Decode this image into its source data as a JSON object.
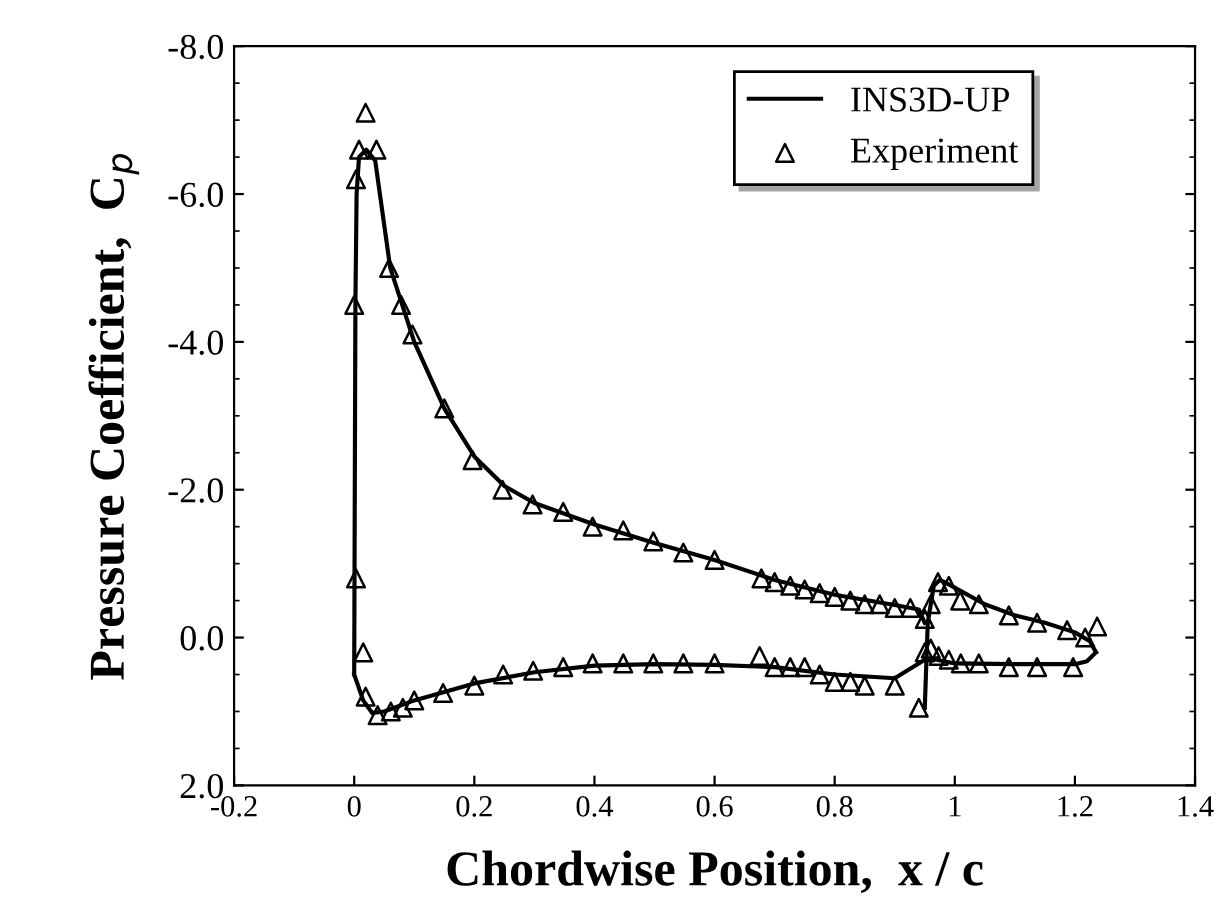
{
  "chart_data": {
    "type": "line",
    "xlabel": "Chordwise Position,  x / c",
    "ylabel": "Pressure Coefficient,  C$_{p}$",
    "xlim": [
      -0.2,
      1.4
    ],
    "xticks": [
      -0.2,
      0,
      0.2,
      0.4,
      0.6,
      0.8,
      1,
      1.2,
      1.4
    ],
    "ylim": [
      2.0,
      -8.0
    ],
    "yticks": [
      {
        "value": 2,
        "label": "2.0"
      },
      {
        "value": 0,
        "label": "0.0"
      },
      {
        "value": -2,
        "label": "-2.0"
      },
      {
        "value": -4,
        "label": "-4.0"
      },
      {
        "value": -6,
        "label": "-6.0"
      },
      {
        "value": -8,
        "label": "-8.0"
      }
    ],
    "legend": "top right",
    "grid": false,
    "series": [
      {
        "name": "INS3D-UP",
        "color": "#000000",
        "line_style": "solid",
        "marker": "none",
        "x": [
          0.0,
          0.001,
          0.002,
          0.004,
          0.008,
          0.02,
          0.035,
          0.06,
          0.08,
          0.1,
          0.15,
          0.2,
          0.25,
          0.3,
          0.4,
          0.5,
          0.6,
          0.7,
          0.8,
          0.9,
          0.94,
          0.95,
          null,
          0.0,
          0.015,
          0.03,
          0.05,
          0.1,
          0.2,
          0.3,
          0.4,
          0.5,
          0.6,
          0.7,
          0.8,
          0.9,
          0.95,
          null,
          0.95,
          0.955,
          0.965,
          0.975,
          0.99,
          1.05,
          1.1,
          1.15,
          1.2,
          1.225,
          1.235,
          null,
          0.955,
          0.97,
          1.0,
          1.1,
          1.2,
          1.22,
          1.235
        ],
        "values": [
          0.5,
          -2.0,
          -4.5,
          -6.0,
          -6.5,
          -6.6,
          -6.45,
          -5.0,
          -4.5,
          -4.0,
          -3.1,
          -2.45,
          -2.05,
          -1.82,
          -1.53,
          -1.28,
          -1.05,
          -0.78,
          -0.58,
          -0.44,
          -0.38,
          -0.2,
          null,
          0.5,
          0.85,
          1.02,
          1.0,
          0.85,
          0.62,
          0.47,
          0.38,
          0.36,
          0.37,
          0.4,
          0.5,
          0.55,
          0.3,
          null,
          0.95,
          -0.2,
          -0.7,
          -0.78,
          -0.72,
          -0.45,
          -0.3,
          -0.2,
          -0.07,
          0.05,
          0.2,
          null,
          0.3,
          0.3,
          0.35,
          0.36,
          0.36,
          0.32,
          0.2
        ]
      },
      {
        "name": "Experiment",
        "type": "scatter",
        "color": "#000000",
        "marker": "triangle",
        "x": [
          0.019,
          0.008,
          0.037,
          0.003,
          0.0,
          0.058,
          0.078,
          0.097,
          0.15,
          0.197,
          0.247,
          0.297,
          0.348,
          0.397,
          0.448,
          0.498,
          0.548,
          0.6,
          0.678,
          0.7,
          0.726,
          0.75,
          0.775,
          0.8,
          0.826,
          0.85,
          0.875,
          0.9,
          0.926,
          0.95,
          0.96,
          0.972,
          0.99,
          1.009,
          1.04,
          1.09,
          1.137,
          1.187,
          1.217,
          1.237,
          0.003,
          0.015,
          0.019,
          0.039,
          0.061,
          0.081,
          0.1,
          0.148,
          0.2,
          0.248,
          0.298,
          0.348,
          0.397,
          0.448,
          0.498,
          0.548,
          0.6,
          0.675,
          0.7,
          0.726,
          0.75,
          0.775,
          0.8,
          0.826,
          0.85,
          0.9,
          0.94,
          0.95,
          0.96,
          0.973,
          0.99,
          1.01,
          1.04,
          1.09,
          1.137,
          1.197
        ],
        "values": [
          -7.1,
          -6.6,
          -6.6,
          -6.2,
          -4.5,
          -5.0,
          -4.5,
          -4.1,
          -3.1,
          -2.4,
          -2.0,
          -1.8,
          -1.7,
          -1.5,
          -1.45,
          -1.3,
          -1.15,
          -1.05,
          -0.8,
          -0.75,
          -0.7,
          -0.65,
          -0.6,
          -0.55,
          -0.5,
          -0.45,
          -0.45,
          -0.4,
          -0.4,
          -0.25,
          -0.45,
          -0.75,
          -0.7,
          -0.5,
          -0.45,
          -0.3,
          -0.2,
          -0.1,
          0.0,
          -0.15,
          -0.8,
          0.2,
          0.8,
          1.05,
          1.0,
          0.95,
          0.85,
          0.75,
          0.65,
          0.5,
          0.45,
          0.4,
          0.35,
          0.35,
          0.35,
          0.35,
          0.35,
          0.25,
          0.4,
          0.4,
          0.4,
          0.5,
          0.6,
          0.6,
          0.65,
          0.65,
          0.95,
          0.2,
          0.15,
          0.25,
          0.3,
          0.35,
          0.35,
          0.4,
          0.4,
          0.4
        ]
      }
    ]
  }
}
